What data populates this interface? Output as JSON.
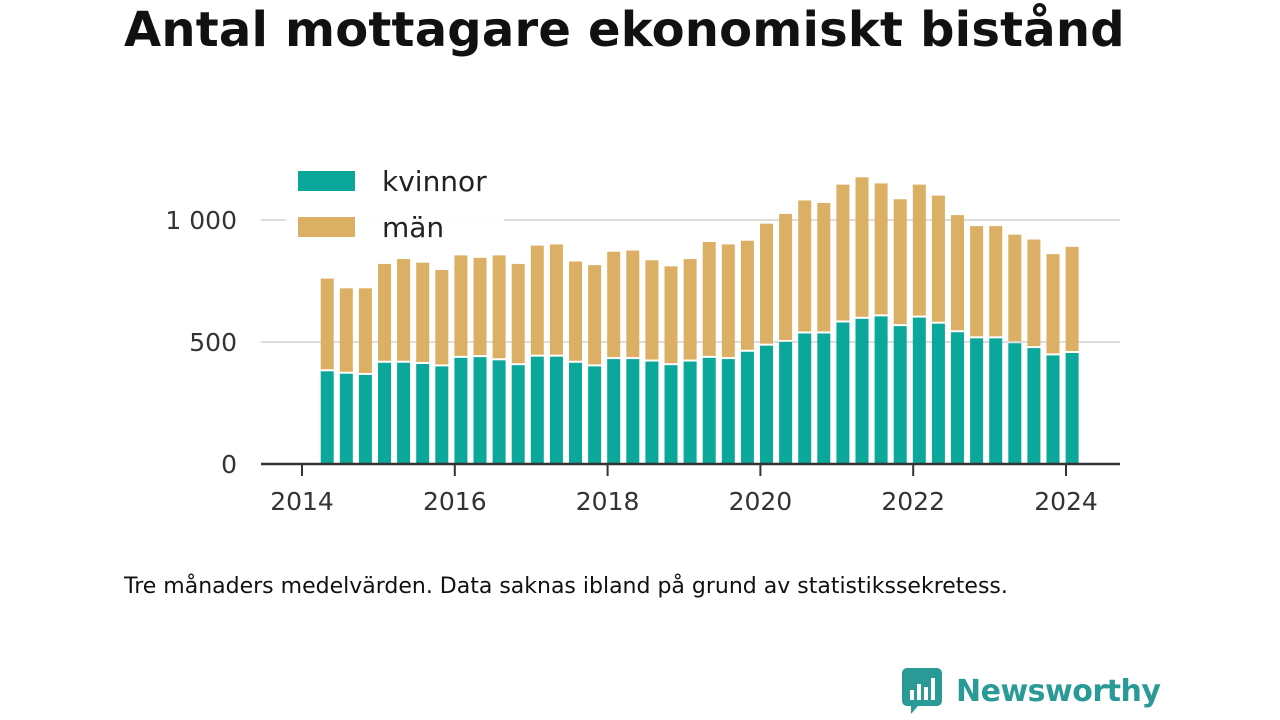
{
  "title": "Antal mottagare ekonomiskt bistånd",
  "footnote": "Tre månaders medelvärden. Data saknas ibland på grund av statistikssekretess.",
  "brand": {
    "name": "Newsworthy",
    "icon": "newsworthy-logo-icon",
    "color": "#2a9a96"
  },
  "colors": {
    "kvinnor": "#0ba79b",
    "man": "#dcb064",
    "grid": "#dddddd",
    "axis": "#333333",
    "tick_label": "#333333"
  },
  "chart_data": {
    "type": "bar",
    "stacked": true,
    "title": "Antal mottagare ekonomiskt bistånd",
    "xlabel": "",
    "ylabel": "",
    "ylim": [
      0,
      1200
    ],
    "xlim": [
      2014.0,
      2024.5
    ],
    "grid": "horizontal",
    "legend": "top-left",
    "y_ticks": [
      0,
      500,
      1000
    ],
    "y_tick_labels": [
      "0",
      "500",
      "1 000"
    ],
    "x_ticks": [
      2014,
      2016,
      2018,
      2020,
      2022,
      2024
    ],
    "x_tick_labels": [
      "2014",
      "2016",
      "2018",
      "2020",
      "2022",
      "2024"
    ],
    "x": [
      2014.33,
      2014.58,
      2014.83,
      2015.08,
      2015.33,
      2015.58,
      2015.83,
      2016.08,
      2016.33,
      2016.58,
      2016.83,
      2017.08,
      2017.33,
      2017.58,
      2017.83,
      2018.08,
      2018.33,
      2018.58,
      2018.83,
      2019.08,
      2019.33,
      2019.58,
      2019.83,
      2020.08,
      2020.33,
      2020.58,
      2020.83,
      2021.08,
      2021.33,
      2021.58,
      2021.83,
      2022.08,
      2022.33,
      2022.58,
      2022.83,
      2023.08,
      2023.33,
      2023.58,
      2023.83,
      2024.08
    ],
    "series": [
      {
        "name": "kvinnor",
        "values": [
          380,
          370,
          365,
          415,
          415,
          410,
          400,
          435,
          438,
          425,
          405,
          440,
          440,
          415,
          400,
          430,
          430,
          420,
          405,
          420,
          435,
          430,
          460,
          485,
          500,
          535,
          535,
          580,
          595,
          605,
          565,
          600,
          575,
          540,
          515,
          515,
          495,
          475,
          445,
          455
        ]
      },
      {
        "name": "män",
        "values": [
          380,
          350,
          355,
          405,
          425,
          415,
          395,
          420,
          407,
          430,
          415,
          455,
          460,
          415,
          415,
          440,
          445,
          415,
          405,
          420,
          475,
          470,
          455,
          500,
          525,
          545,
          535,
          565,
          580,
          545,
          520,
          545,
          525,
          480,
          460,
          460,
          445,
          445,
          415,
          435
        ]
      }
    ]
  }
}
